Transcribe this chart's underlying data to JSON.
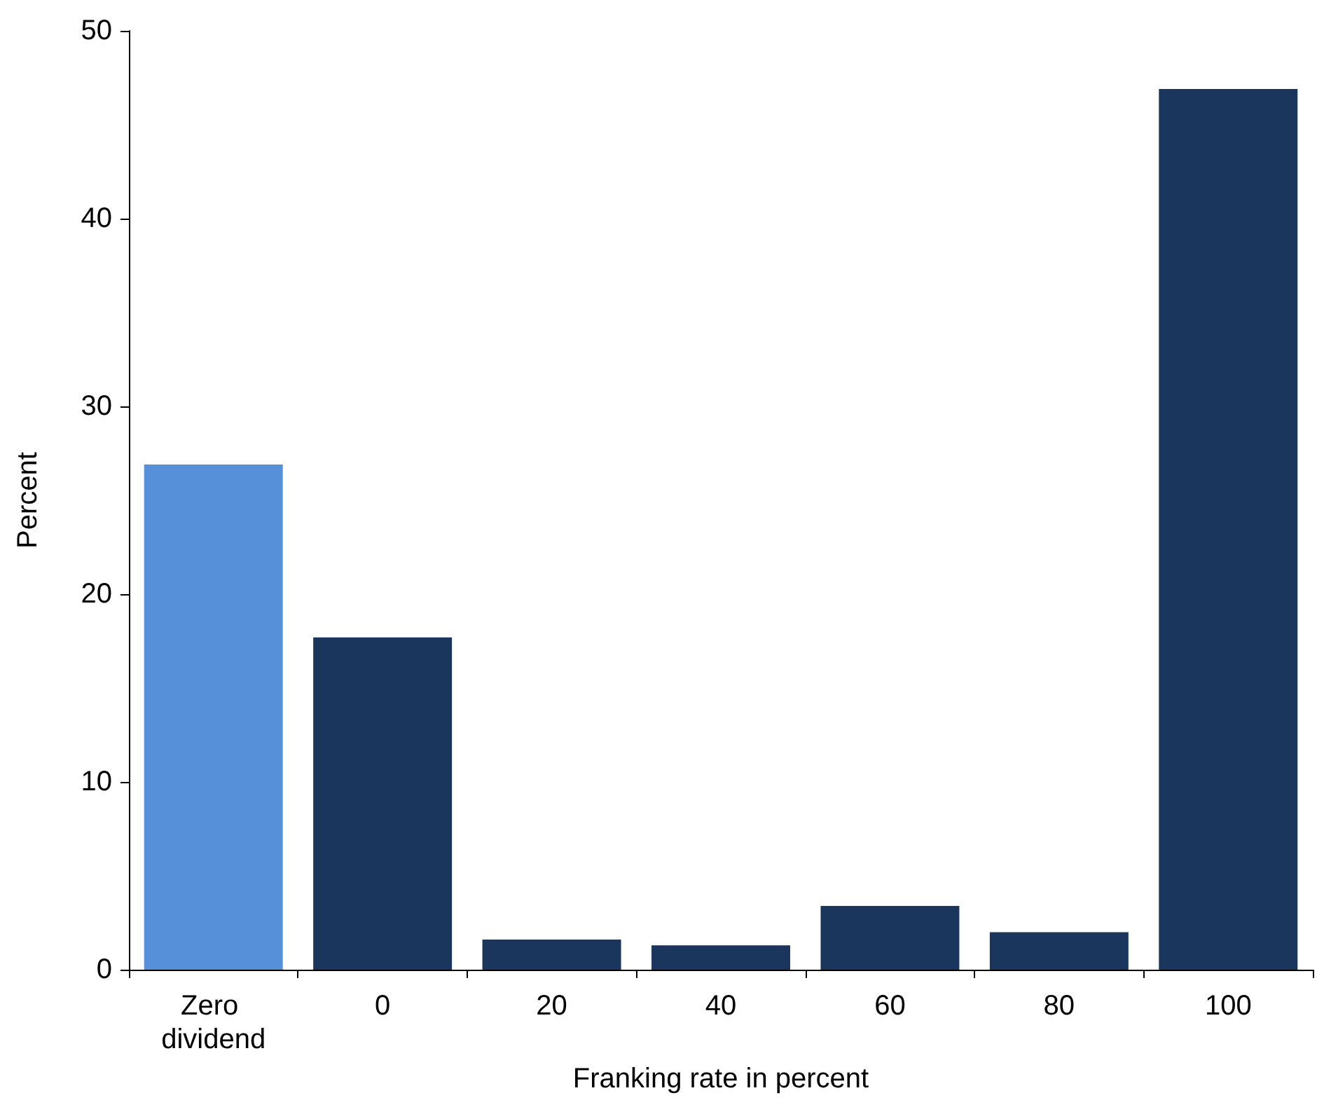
{
  "chart_data": {
    "type": "bar",
    "xlabel": "Franking rate in percent",
    "ylabel": "Percent",
    "categories": [
      "Zero dividend",
      "0",
      "20",
      "40",
      "60",
      "80",
      "100"
    ],
    "values": [
      26.9,
      17.7,
      1.6,
      1.3,
      3.4,
      2.0,
      46.9
    ],
    "colors": [
      "#5590d8",
      "#1b365d",
      "#1b365d",
      "#1b365d",
      "#1b365d",
      "#1b365d",
      "#1b365d"
    ],
    "ylim": [
      0,
      50
    ],
    "yticks": [
      0,
      10,
      20,
      30,
      40,
      50
    ],
    "grid": false
  }
}
